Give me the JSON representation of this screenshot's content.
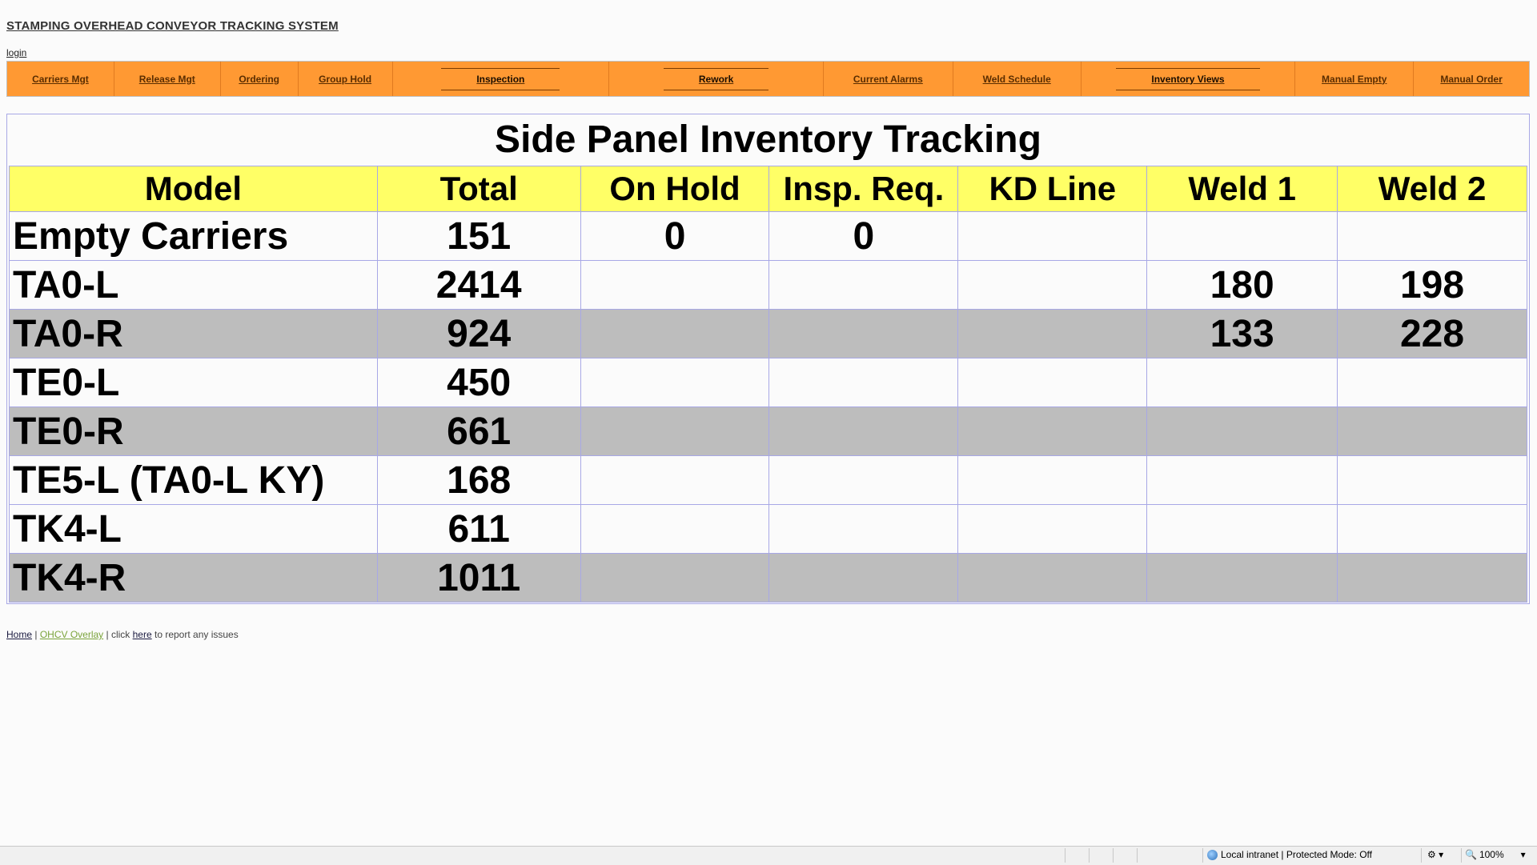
{
  "header": {
    "system_title": "STAMPING OVERHEAD CONVEYOR TRACKING SYSTEM",
    "login_label": "login"
  },
  "nav": {
    "items": [
      {
        "label": "Carriers Mgt"
      },
      {
        "label": "Release Mgt"
      },
      {
        "label": "Ordering"
      },
      {
        "label": "Group Hold"
      },
      {
        "label": "Inspection"
      },
      {
        "label": "Rework"
      },
      {
        "label": "Current Alarms"
      },
      {
        "label": "Weld Schedule"
      },
      {
        "label": "Inventory Views"
      },
      {
        "label": "Manual Empty"
      },
      {
        "label": "Manual Order"
      }
    ]
  },
  "main": {
    "title": "Side Panel Inventory Tracking",
    "columns": [
      "Model",
      "Total",
      "On Hold",
      "Insp. Req.",
      "KD Line",
      "Weld 1",
      "Weld 2"
    ],
    "rows": [
      [
        "Empty Carriers",
        "151",
        "0",
        "0",
        "",
        "",
        ""
      ],
      [
        "TA0-L",
        "2414",
        "",
        "",
        "",
        "180",
        "198"
      ],
      [
        "TA0-R",
        "924",
        "",
        "",
        "",
        "133",
        "228"
      ],
      [
        "TE0-L",
        "450",
        "",
        "",
        "",
        "",
        ""
      ],
      [
        "TE0-R",
        "661",
        "",
        "",
        "",
        "",
        ""
      ],
      [
        "TE5-L (TA0-L KY)",
        "168",
        "",
        "",
        "",
        "",
        ""
      ],
      [
        "TK4-L",
        "611",
        "",
        "",
        "",
        "",
        ""
      ],
      [
        "TK4-R",
        "1011",
        "",
        "",
        "",
        "",
        ""
      ]
    ]
  },
  "footer": {
    "home": "Home",
    "sep1": " | ",
    "overlay": "OHCV Overlay",
    "sep2": " | click ",
    "here": "here",
    "tail": " to report any issues"
  },
  "statusbar": {
    "zone_text": "Local intranet | Protected Mode: Off",
    "zoom": "100%"
  }
}
